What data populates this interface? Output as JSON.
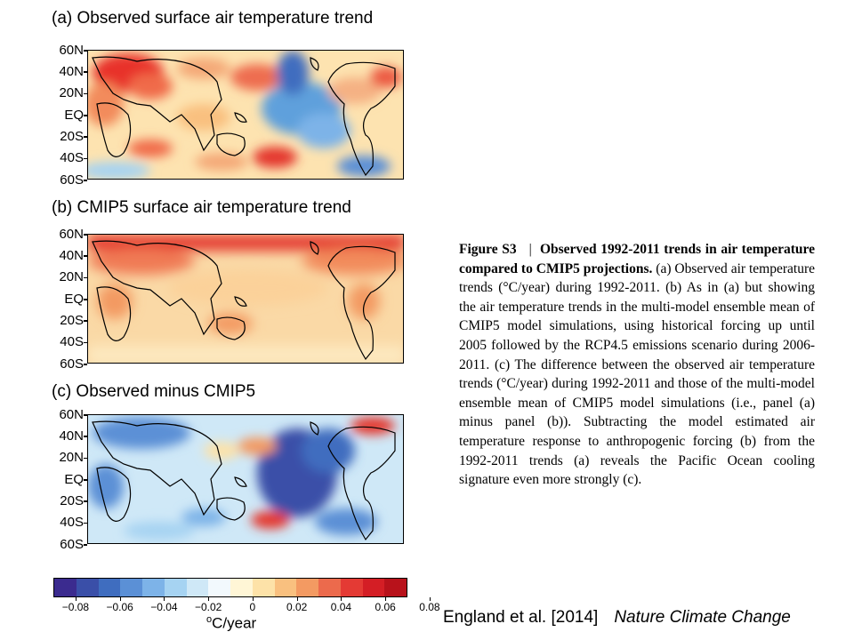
{
  "panels": [
    {
      "title": "(a) Observed surface air temperature trend",
      "palette": "observed"
    },
    {
      "title": "(b) CMIP5 surface air temperature trend",
      "palette": "cmip5"
    },
    {
      "title": "(c) Observed minus CMIP5",
      "palette": "difference"
    }
  ],
  "lat_labels": [
    "60N",
    "40N",
    "20N",
    "EQ",
    "20S",
    "40S",
    "60S"
  ],
  "caption": {
    "label": "Figure S3",
    "separator": "|",
    "bold_title": "Observed 1992-2011 trends in air temperature compared to CMIP5 projections.",
    "body": "(a) Observed air temperature trends (°C/year) during 1992-2011. (b) As in (a) but showing the air temperature trends in the multi-model ensemble mean of CMIP5 model simulations, using historical forcing up until 2005 followed by the RCP4.5 emissions scenario during 2006-2011. (c) The difference between the observed air temperature trends (°C/year) during 1992-2011 and those of the multi-model ensemble mean of CMIP5 model simulations (i.e., panel (a) minus panel (b)). Subtracting the model estimated air temperature response to anthropogenic forcing (b) from the 1992-2011 trends (a) reveals the Pacific Ocean cooling signature even more strongly (c)."
  },
  "colorbar": {
    "colors": [
      "#3b2b8f",
      "#3a4fa8",
      "#3f6dbf",
      "#5b90d6",
      "#7db3e8",
      "#a6d3f2",
      "#cfe8f7",
      "#f2f9fd",
      "#fff6d6",
      "#fde2a8",
      "#f9c07f",
      "#f39a62",
      "#ec6a4c",
      "#e43a34",
      "#d41e25",
      "#b8121b"
    ],
    "tick_labels": [
      "−0.08",
      "−0.06",
      "−0.04",
      "−0.02",
      "0",
      "0.02",
      "0.04",
      "0.06",
      "0.08"
    ],
    "units_main": "C/year",
    "units_sup": "o"
  },
  "citation": {
    "authors": "England et al. [2014]",
    "journal": "Nature Climate Change"
  }
}
